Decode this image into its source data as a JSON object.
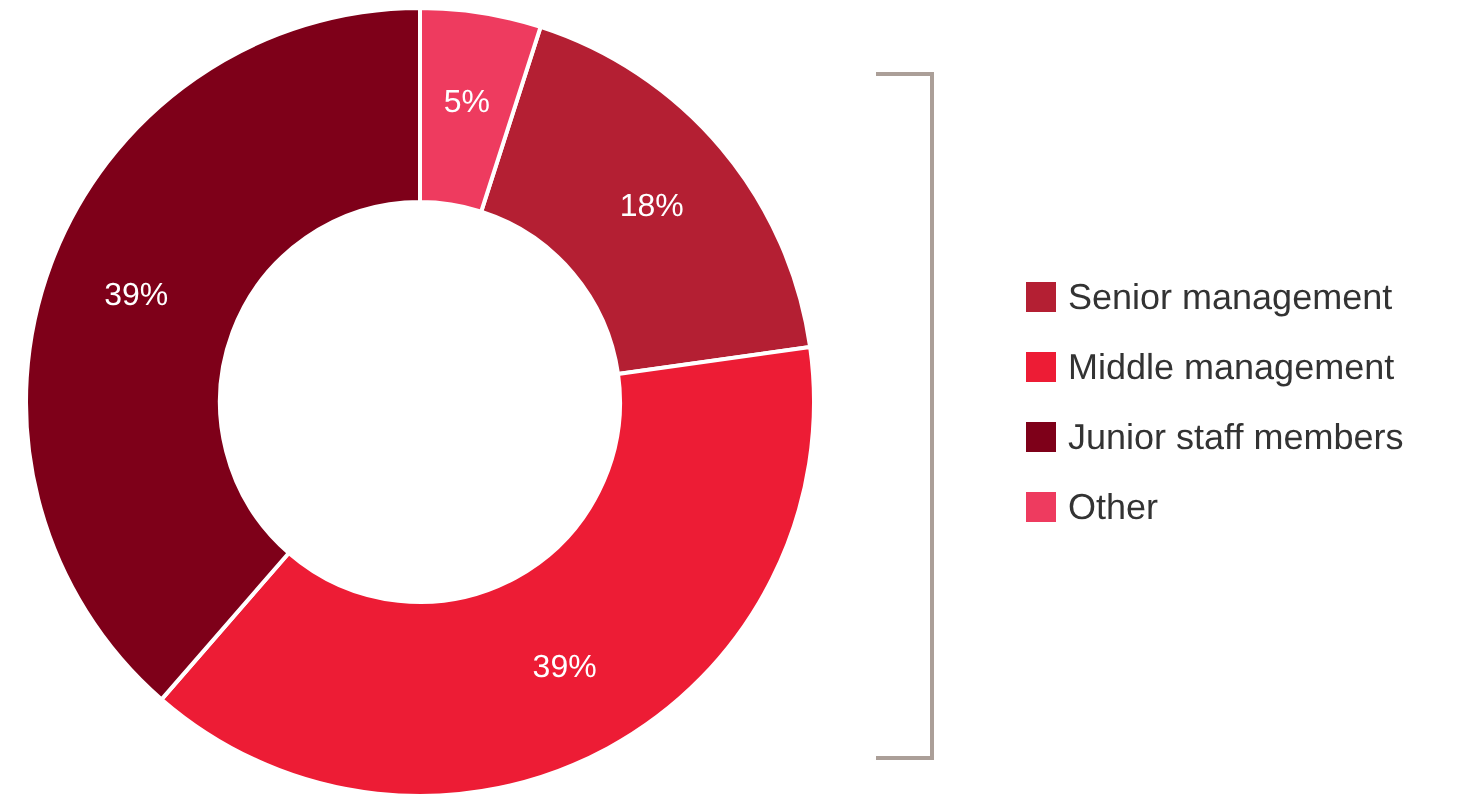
{
  "chart_data": {
    "type": "donut",
    "categories": [
      "Senior management",
      "Middle management",
      "Junior staff members",
      "Other"
    ],
    "values": [
      18,
      39,
      39,
      5
    ],
    "colors": [
      "#b41f33",
      "#ed1c35",
      "#7e0019",
      "#ee3b5f"
    ],
    "value_labels": [
      "18%",
      "39%",
      "39%",
      "5%"
    ],
    "legend": "right"
  }
}
